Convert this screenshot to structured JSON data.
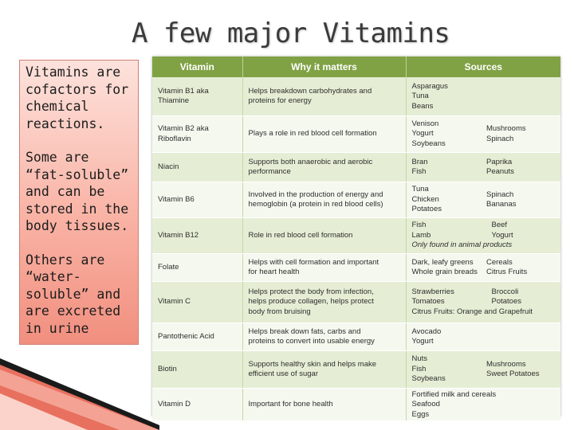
{
  "slide": {
    "title": "A few major Vitamins",
    "side_paragraphs": [
      "Vitamins are cofactors for chemical reactions.",
      "Some are “fat-soluble” and can be stored in the body tissues.",
      "Others are “water-soluble” and are excreted in urine"
    ]
  },
  "table": {
    "headers": {
      "vitamin": "Vitamin",
      "why": "Why it matters",
      "sources": "Sources"
    },
    "rows": [
      {
        "vitamin": [
          "Vitamin B1 aka",
          "Thiamine"
        ],
        "why": [
          "Helps breakdown carbohydrates and",
          "proteins for energy"
        ],
        "src_a": [
          "Asparagus",
          "Tuna",
          "Beans"
        ],
        "src_b": []
      },
      {
        "vitamin": [
          "Vitamin B2 aka",
          "Riboflavin"
        ],
        "why": [
          "Plays a role in red blood cell formation"
        ],
        "src_a": [
          "Venison",
          "Yogurt",
          "Soybeans"
        ],
        "src_b": [
          "Mushrooms",
          "Spinach"
        ]
      },
      {
        "vitamin": [
          "Niacin"
        ],
        "why": [
          "Supports both anaerobic and aerobic",
          "performance"
        ],
        "src_a": [
          "Bran",
          "Fish"
        ],
        "src_b": [
          "Paprika",
          "Peanuts"
        ]
      },
      {
        "vitamin": [
          "Vitamin B6"
        ],
        "why": [
          "Involved in the production of energy and",
          "hemoglobin (a protein in red blood cells)"
        ],
        "src_a": [
          "Tuna",
          "Chicken",
          "Potatoes"
        ],
        "src_b": [
          "Spinach",
          "Bananas"
        ]
      },
      {
        "vitamin": [
          "Vitamin B12"
        ],
        "why": [
          "Role in red blood cell formation"
        ],
        "src_a": [
          "Fish",
          "Lamb"
        ],
        "src_b": [
          "Beef",
          "Yogurt"
        ],
        "note": "Only found in animal products"
      },
      {
        "vitamin": [
          "Folate"
        ],
        "why": [
          "Helps with cell formation and important",
          "for heart health"
        ],
        "src_a": [
          "Dark, leafy greens",
          "Whole grain breads"
        ],
        "src_b": [
          "Cereals",
          "Citrus Fruits"
        ]
      },
      {
        "vitamin": [
          "Vitamin C"
        ],
        "why": [
          "Helps protect the body from infection,",
          "helps produce collagen, helps protect",
          "body from bruising"
        ],
        "src_a": [
          "Strawberries",
          "Tomatoes"
        ],
        "src_b": [
          "Broccoli",
          "Potatoes"
        ],
        "note": "Citrus Fruits: Orange and Grapefruit"
      },
      {
        "vitamin": [
          "Pantothenic Acid"
        ],
        "why": [
          "Helps break down fats, carbs and",
          "proteins to convert into usable energy"
        ],
        "src_a": [
          "Avocado",
          "Yogurt"
        ],
        "src_b": []
      },
      {
        "vitamin": [
          "Biotin"
        ],
        "why": [
          "Supports healthy skin and helps make",
          "efficient use of sugar"
        ],
        "src_a": [
          "Nuts",
          "Fish",
          "Soybeans"
        ],
        "src_b": [
          "Mushrooms",
          "Sweet Potatoes"
        ]
      },
      {
        "vitamin": [
          "Vitamin D"
        ],
        "why": [
          "Important for bone health"
        ],
        "src_a": [
          "Fortified milk and cereals",
          "Seafood",
          "Eggs"
        ],
        "src_b": []
      }
    ]
  },
  "colors": {
    "header_bg": "#80a245",
    "row_odd": "#e5eed5",
    "row_even": "#f5f8ef",
    "side_box_top": "#fde2dc",
    "side_box_bottom": "#f18f7f"
  }
}
